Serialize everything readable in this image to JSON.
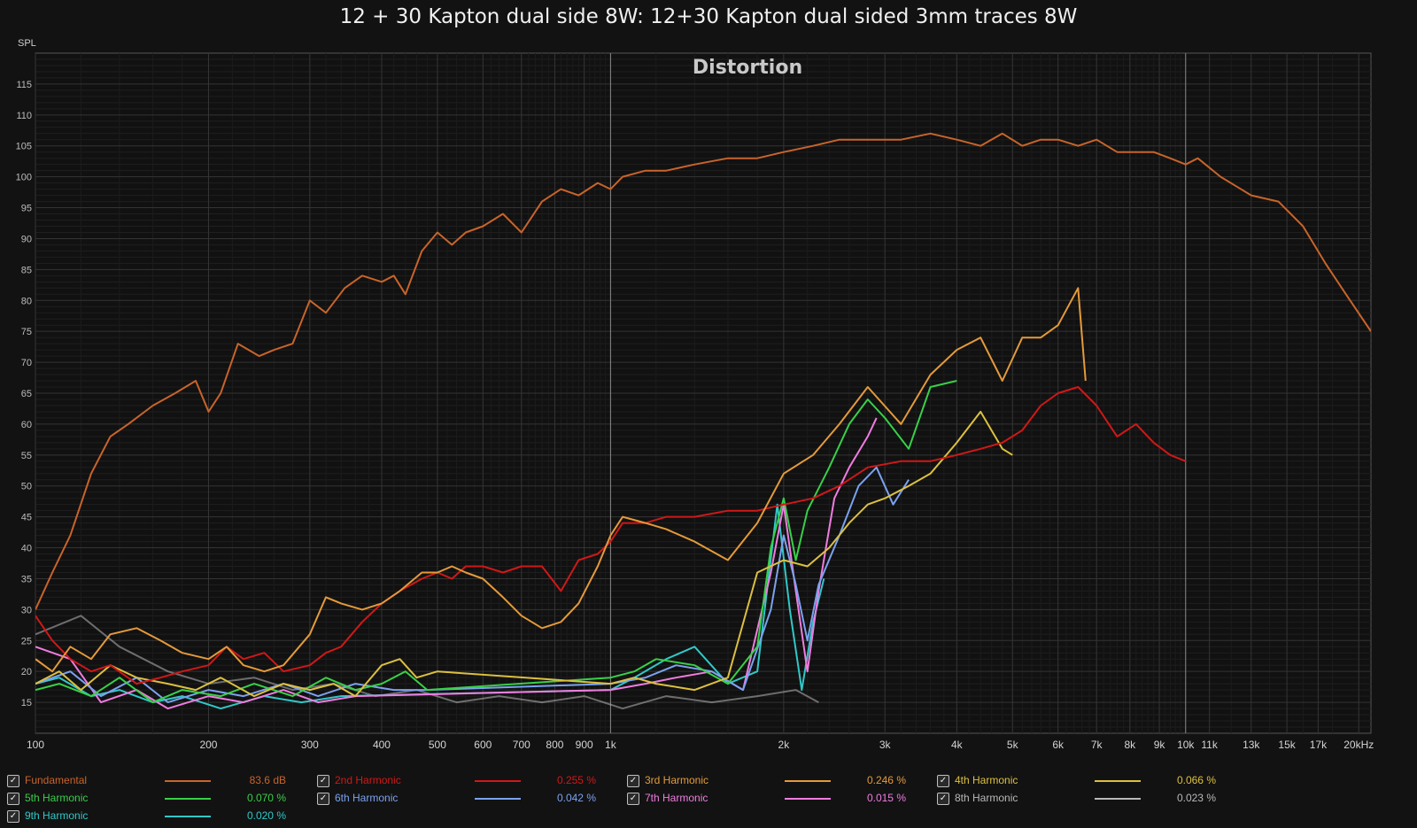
{
  "chart_title": "12 + 30 Kapton dual side 8W: 12+30 Kapton dual sided 3mm traces 8W",
  "chart_data": {
    "type": "line",
    "title": "Distortion",
    "ylabel": "SPL",
    "xscale": "log",
    "xlim": [
      100,
      21000
    ],
    "ylim": [
      10,
      120
    ],
    "grid": true,
    "x_ticks": [
      {
        "v": 100,
        "label": "100"
      },
      {
        "v": 200,
        "label": "200"
      },
      {
        "v": 300,
        "label": "300"
      },
      {
        "v": 400,
        "label": "400"
      },
      {
        "v": 500,
        "label": "500"
      },
      {
        "v": 600,
        "label": "600"
      },
      {
        "v": 700,
        "label": "700"
      },
      {
        "v": 800,
        "label": "800"
      },
      {
        "v": 900,
        "label": "900"
      },
      {
        "v": 1000,
        "label": "1k"
      },
      {
        "v": 2000,
        "label": "2k"
      },
      {
        "v": 3000,
        "label": "3k"
      },
      {
        "v": 4000,
        "label": "4k"
      },
      {
        "v": 5000,
        "label": "5k"
      },
      {
        "v": 6000,
        "label": "6k"
      },
      {
        "v": 7000,
        "label": "7k"
      },
      {
        "v": 8000,
        "label": "8k"
      },
      {
        "v": 9000,
        "label": "9k"
      },
      {
        "v": 10000,
        "label": "10k"
      },
      {
        "v": 11000,
        "label": "11k"
      },
      {
        "v": 13000,
        "label": "13k"
      },
      {
        "v": 15000,
        "label": "15k"
      },
      {
        "v": 17000,
        "label": "17k"
      },
      {
        "v": 20000,
        "label": "20kHz"
      }
    ],
    "y_ticks": [
      15,
      20,
      25,
      30,
      35,
      40,
      45,
      50,
      55,
      60,
      65,
      70,
      75,
      80,
      85,
      90,
      95,
      100,
      105,
      110,
      115
    ],
    "legend_position": "bottom",
    "series": [
      {
        "name": "Fundamental",
        "color": "#c8642a",
        "value": "83.6 dB",
        "x": [
          100,
          107,
          115,
          125,
          135,
          145,
          160,
          175,
          190,
          200,
          210,
          225,
          245,
          260,
          280,
          300,
          320,
          345,
          370,
          400,
          420,
          440,
          470,
          500,
          530,
          560,
          600,
          650,
          700,
          760,
          820,
          880,
          950,
          1000,
          1050,
          1150,
          1250,
          1400,
          1600,
          1800,
          2000,
          2250,
          2500,
          2800,
          3200,
          3600,
          4000,
          4400,
          4800,
          5200,
          5600,
          6000,
          6500,
          7000,
          7600,
          8200,
          8800,
          9400,
          10000,
          10500,
          11500,
          13000,
          14500,
          16000,
          17500,
          19000,
          21000
        ],
        "y": [
          30,
          36,
          42,
          52,
          58,
          60,
          63,
          65,
          67,
          62,
          65,
          73,
          71,
          72,
          73,
          80,
          78,
          82,
          84,
          83,
          84,
          81,
          88,
          91,
          89,
          91,
          92,
          94,
          91,
          96,
          98,
          97,
          99,
          98,
          100,
          101,
          101,
          102,
          103,
          103,
          104,
          105,
          106,
          106,
          106,
          107,
          106,
          105,
          107,
          105,
          106,
          106,
          105,
          106,
          104,
          104,
          104,
          103,
          102,
          103,
          100,
          97,
          96,
          92,
          86,
          81,
          75
        ]
      },
      {
        "name": "2nd Harmonic",
        "color": "#d01818",
        "value": "0.255 %",
        "x": [
          100,
          107,
          115,
          125,
          135,
          150,
          165,
          180,
          200,
          215,
          230,
          250,
          270,
          300,
          320,
          340,
          370,
          400,
          430,
          470,
          500,
          530,
          560,
          600,
          650,
          700,
          760,
          820,
          880,
          950,
          1000,
          1050,
          1150,
          1250,
          1400,
          1600,
          1800,
          2000,
          2250,
          2500,
          2800,
          3200,
          3600,
          4000,
          4400,
          4800,
          5200,
          5600,
          6000,
          6500,
          7000,
          7600,
          8200,
          8800,
          9400,
          10000
        ],
        "y": [
          29,
          25,
          22,
          20,
          21,
          18,
          19,
          20,
          21,
          24,
          22,
          23,
          20,
          21,
          23,
          24,
          28,
          31,
          33,
          35,
          36,
          35,
          37,
          37,
          36,
          37,
          37,
          33,
          38,
          39,
          41,
          44,
          44,
          45,
          45,
          46,
          46,
          47,
          48,
          50,
          53,
          54,
          54,
          55,
          56,
          57,
          59,
          63,
          65,
          66,
          63,
          58,
          60,
          57,
          55,
          54
        ]
      },
      {
        "name": "3rd Harmonic",
        "color": "#e49a3a",
        "value": "0.246 %",
        "x": [
          100,
          107,
          115,
          125,
          135,
          150,
          165,
          180,
          200,
          215,
          230,
          250,
          270,
          300,
          320,
          340,
          370,
          400,
          430,
          470,
          500,
          530,
          560,
          600,
          650,
          700,
          760,
          820,
          880,
          950,
          1000,
          1050,
          1150,
          1250,
          1400,
          1600,
          1800,
          2000,
          2250,
          2500,
          2800,
          3200,
          3600,
          4000,
          4400,
          4800,
          5200,
          5600,
          6000,
          6500,
          6700
        ],
        "y": [
          22,
          20,
          24,
          22,
          26,
          27,
          25,
          23,
          22,
          24,
          21,
          20,
          21,
          26,
          32,
          31,
          30,
          31,
          33,
          36,
          36,
          37,
          36,
          35,
          32,
          29,
          27,
          28,
          31,
          37,
          42,
          45,
          44,
          43,
          41,
          38,
          44,
          52,
          55,
          60,
          66,
          60,
          68,
          72,
          74,
          67,
          74,
          74,
          76,
          82,
          67
        ]
      },
      {
        "name": "4th Harmonic",
        "color": "#dcc040",
        "value": "0.066 %",
        "x": [
          100,
          110,
          120,
          135,
          150,
          170,
          190,
          210,
          240,
          270,
          300,
          330,
          360,
          400,
          430,
          460,
          500,
          1000,
          1100,
          1200,
          1400,
          1600,
          1800,
          2000,
          2200,
          2400,
          2600,
          2800,
          3000,
          3300,
          3600,
          4000,
          4400,
          4800,
          5000
        ],
        "y": [
          18,
          20,
          17,
          21,
          19,
          18,
          17,
          19,
          16,
          18,
          17,
          18,
          16,
          21,
          22,
          19,
          20,
          18,
          19,
          18,
          17,
          19,
          36,
          38,
          37,
          40,
          44,
          47,
          48,
          50,
          52,
          57,
          62,
          56,
          55
        ]
      },
      {
        "name": "5th Harmonic",
        "color": "#38d048",
        "value": "0.070 %",
        "x": [
          100,
          110,
          125,
          140,
          160,
          180,
          210,
          240,
          280,
          320,
          360,
          400,
          440,
          480,
          1000,
          1100,
          1200,
          1400,
          1600,
          1800,
          1900,
          2000,
          2100,
          2200,
          2400,
          2600,
          2800,
          3000,
          3300,
          3600,
          4000
        ],
        "y": [
          17,
          18,
          16,
          19,
          15,
          17,
          16,
          18,
          16,
          19,
          17,
          18,
          20,
          17,
          19,
          20,
          22,
          21,
          18,
          24,
          40,
          48,
          38,
          46,
          53,
          60,
          64,
          61,
          56,
          66,
          67
        ]
      },
      {
        "name": "6th Harmonic",
        "color": "#7ba2f0",
        "value": "0.042 %",
        "x": [
          100,
          115,
          130,
          150,
          170,
          200,
          230,
          270,
          310,
          360,
          420,
          480,
          1000,
          1150,
          1300,
          1500,
          1700,
          1900,
          2000,
          2100,
          2200,
          2300,
          2500,
          2700,
          2900,
          3100,
          3300
        ],
        "y": [
          18,
          20,
          16,
          19,
          15,
          17,
          16,
          18,
          16,
          18,
          17,
          17,
          18,
          19,
          21,
          20,
          17,
          30,
          42,
          34,
          25,
          34,
          42,
          50,
          53,
          47,
          51
        ]
      },
      {
        "name": "7th Harmonic",
        "color": "#f07ce0",
        "value": "0.015 %",
        "x": [
          100,
          115,
          130,
          150,
          170,
          200,
          230,
          270,
          310,
          360,
          1000,
          1150,
          1300,
          1500,
          1700,
          1900,
          2000,
          2100,
          2200,
          2300,
          2450,
          2600,
          2800,
          2900
        ],
        "y": [
          24,
          22,
          15,
          17,
          14,
          16,
          15,
          17,
          15,
          16,
          17,
          18,
          19,
          20,
          17,
          36,
          47,
          33,
          20,
          33,
          48,
          53,
          58,
          61
        ]
      },
      {
        "name": "8th Harmonic",
        "color": "#b8b8b8",
        "value": "0.023 %",
        "x": [
          100,
          120,
          140,
          170,
          200,
          240,
          280,
          330,
          390,
          460,
          540,
          640,
          760,
          900,
          1050,
          1250,
          1500,
          1800,
          2100,
          2300
        ],
        "y": [
          26,
          29,
          24,
          20,
          18,
          19,
          17,
          18,
          16,
          17,
          15,
          16,
          15,
          16,
          14,
          16,
          15,
          16,
          17,
          15
        ]
      },
      {
        "name": "9th Harmonic",
        "color": "#30c8c8",
        "value": "0.020 %",
        "x": [
          100,
          110,
          125,
          140,
          160,
          180,
          210,
          250,
          290,
          340,
          1000,
          1100,
          1250,
          1400,
          1600,
          1800,
          1950,
          2050,
          2150,
          2250,
          2350
        ],
        "y": [
          18,
          19,
          16,
          17,
          15,
          16,
          14,
          16,
          15,
          16,
          17,
          19,
          22,
          24,
          18,
          20,
          47,
          30,
          17,
          28,
          35
        ]
      }
    ]
  }
}
